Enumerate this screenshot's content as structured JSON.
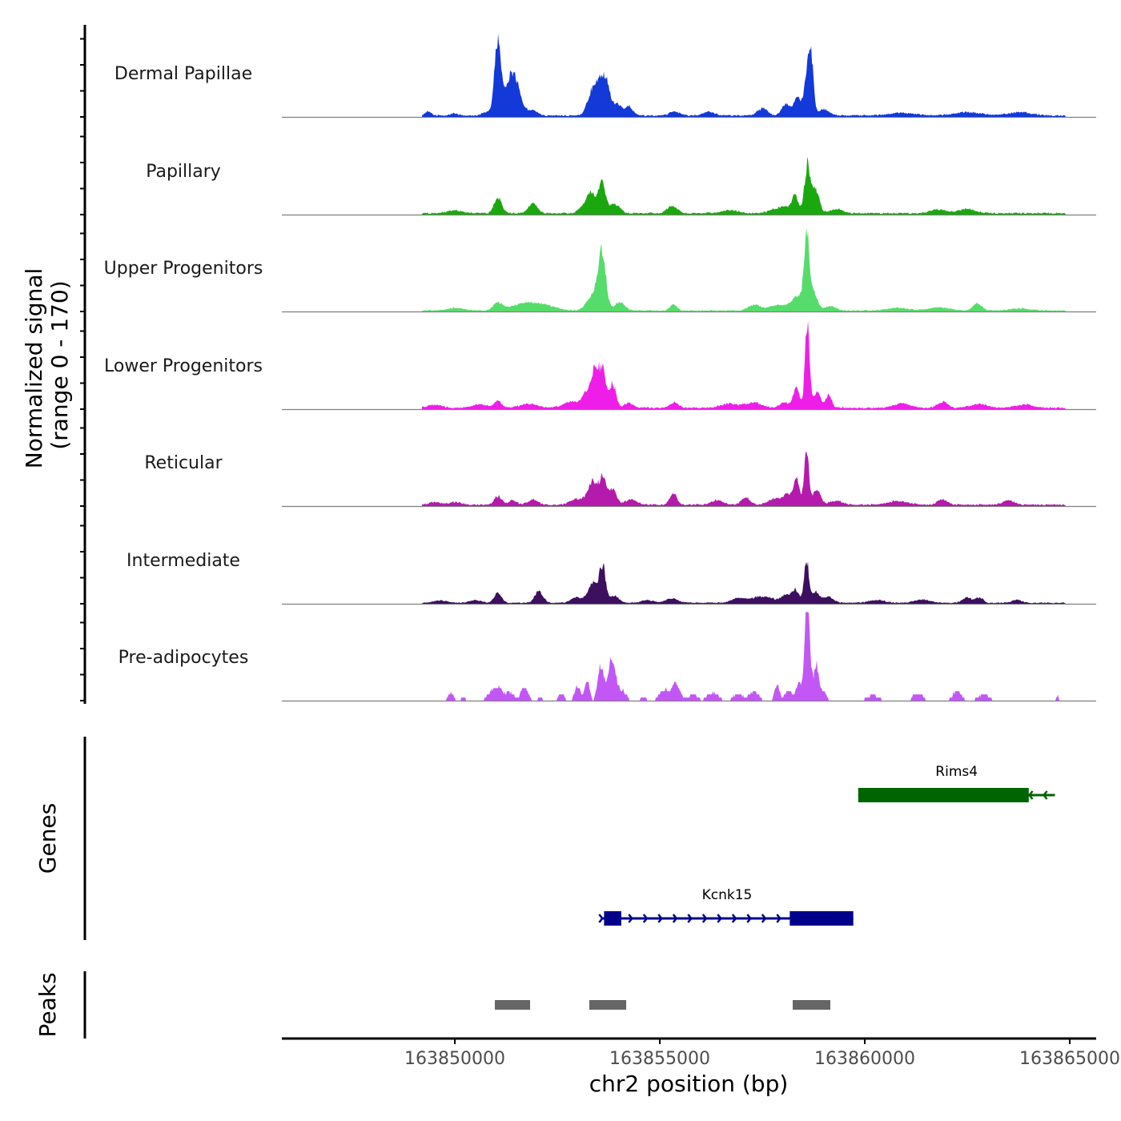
{
  "chart_data": {
    "type": "area",
    "title": "",
    "chromosome": "chr2",
    "xlabel": "chr2 position (bp)",
    "xlim": [
      163845780,
      163865645
    ],
    "x_ticks": [
      163850000,
      163855000,
      163860000,
      163865000
    ],
    "x_tick_labels": [
      "163850000",
      "163855000",
      "163860000",
      "163865000"
    ],
    "coverage": {
      "ylabel_line1": "Normalized signal",
      "ylabel_line2": "(range 0 - 170)",
      "ylim": [
        0,
        170
      ],
      "y_ticks": [
        0,
        50,
        100,
        150
      ],
      "data_start": 163849200,
      "data_end": 163864900,
      "tracks": [
        {
          "name": "Dermal Papillae",
          "color": "#1339D9",
          "peaks": [
            [
              163849355,
              8,
              80
            ],
            [
              163849980,
              5,
              80
            ],
            [
              163850800,
              7,
              120
            ],
            [
              163851050,
              137,
              80
            ],
            [
              163851370,
              71,
              130
            ],
            [
              163851550,
              30,
              120
            ],
            [
              163851900,
              10,
              120
            ],
            [
              163853340,
              45,
              110
            ],
            [
              163853530,
              57,
              90
            ],
            [
              163853700,
              60,
              90
            ],
            [
              163853960,
              22,
              100
            ],
            [
              163854240,
              18,
              100
            ],
            [
              163855360,
              8,
              120
            ],
            [
              163856200,
              7,
              140
            ],
            [
              163857500,
              14,
              120
            ],
            [
              163858080,
              22,
              100
            ],
            [
              163858360,
              34,
              90
            ],
            [
              163858600,
              89,
              70
            ],
            [
              163858700,
              83,
              60
            ],
            [
              163859000,
              12,
              120
            ],
            [
              163860900,
              5,
              300
            ],
            [
              163862500,
              6,
              300
            ],
            [
              163863800,
              6,
              300
            ]
          ],
          "baseline": 3
        },
        {
          "name": "Papillary",
          "color": "#1BA80F",
          "peaks": [
            [
              163850000,
              5,
              200
            ],
            [
              163851050,
              31,
              90
            ],
            [
              163851900,
              18,
              110
            ],
            [
              163853150,
              14,
              120
            ],
            [
              163853320,
              34,
              90
            ],
            [
              163853580,
              60,
              90
            ],
            [
              163853900,
              18,
              120
            ],
            [
              163855300,
              14,
              120
            ],
            [
              163856700,
              6,
              200
            ],
            [
              163857800,
              8,
              150
            ],
            [
              163858050,
              11,
              110
            ],
            [
              163858300,
              34,
              80
            ],
            [
              163858600,
              92,
              70
            ],
            [
              163858800,
              46,
              90
            ],
            [
              163859300,
              8,
              150
            ],
            [
              163861800,
              7,
              200
            ],
            [
              163862500,
              8,
              200
            ]
          ],
          "baseline": 3
        },
        {
          "name": "Upper Progenitors",
          "color": "#56DC6A",
          "peaks": [
            [
              163850010,
              5,
              200
            ],
            [
              163851050,
              14,
              110
            ],
            [
              163851650,
              12,
              300
            ],
            [
              163852150,
              10,
              300
            ],
            [
              163853250,
              14,
              110
            ],
            [
              163853460,
              34,
              110
            ],
            [
              163853600,
              98,
              90
            ],
            [
              163854020,
              16,
              120
            ],
            [
              163855330,
              13,
              80
            ],
            [
              163857300,
              11,
              140
            ],
            [
              163857900,
              10,
              250
            ],
            [
              163858380,
              26,
              150
            ],
            [
              163858580,
              138,
              60
            ],
            [
              163858750,
              38,
              90
            ],
            [
              163859150,
              8,
              150
            ],
            [
              163860800,
              5,
              250
            ],
            [
              163861800,
              6,
              250
            ],
            [
              163862750,
              14,
              110
            ],
            [
              163863800,
              4,
              250
            ]
          ],
          "baseline": 2
        },
        {
          "name": "Lower Progenitors",
          "color": "#EE1EE8",
          "peaks": [
            [
              163849500,
              5,
              200
            ],
            [
              163850600,
              6,
              200
            ],
            [
              163851050,
              12,
              90
            ],
            [
              163851800,
              8,
              200
            ],
            [
              163852850,
              12,
              200
            ],
            [
              163853230,
              30,
              110
            ],
            [
              163853420,
              66,
              80
            ],
            [
              163853600,
              77,
              80
            ],
            [
              163853850,
              46,
              80
            ],
            [
              163854240,
              10,
              100
            ],
            [
              163855350,
              10,
              100
            ],
            [
              163856700,
              8,
              200
            ],
            [
              163857300,
              10,
              200
            ],
            [
              163858040,
              10,
              120
            ],
            [
              163858330,
              37,
              80
            ],
            [
              163858600,
              169,
              55
            ],
            [
              163858840,
              33,
              80
            ],
            [
              163859120,
              26,
              70
            ],
            [
              163860900,
              8,
              200
            ],
            [
              163861900,
              11,
              120
            ],
            [
              163862800,
              7,
              200
            ],
            [
              163863900,
              6,
              200
            ]
          ],
          "baseline": 3
        },
        {
          "name": "Reticular",
          "color": "#B41AAC",
          "peaks": [
            [
              163849500,
              5,
              150
            ],
            [
              163850000,
              5,
              150
            ],
            [
              163851050,
              17,
              90
            ],
            [
              163851400,
              9,
              100
            ],
            [
              163851900,
              10,
              120
            ],
            [
              163852900,
              9,
              120
            ],
            [
              163853200,
              12,
              150
            ],
            [
              163853360,
              38,
              90
            ],
            [
              163853600,
              54,
              90
            ],
            [
              163853850,
              30,
              90
            ],
            [
              163854300,
              10,
              150
            ],
            [
              163855330,
              20,
              90
            ],
            [
              163856400,
              8,
              150
            ],
            [
              163857100,
              14,
              100
            ],
            [
              163857800,
              12,
              150
            ],
            [
              163858100,
              18,
              100
            ],
            [
              163858330,
              46,
              80
            ],
            [
              163858580,
              111,
              55
            ],
            [
              163858830,
              31,
              90
            ],
            [
              163859300,
              8,
              150
            ],
            [
              163860800,
              7,
              250
            ],
            [
              163861900,
              10,
              120
            ],
            [
              163863500,
              8,
              150
            ]
          ],
          "baseline": 3
        },
        {
          "name": "Intermediate",
          "color": "#3C0F5F",
          "peaks": [
            [
              163849650,
              5,
              150
            ],
            [
              163850500,
              5,
              150
            ],
            [
              163851050,
              18,
              90
            ],
            [
              163852050,
              22,
              100
            ],
            [
              163852950,
              10,
              120
            ],
            [
              163853250,
              12,
              100
            ],
            [
              163853380,
              31,
              90
            ],
            [
              163853600,
              72,
              80
            ],
            [
              163853900,
              14,
              100
            ],
            [
              163854700,
              5,
              150
            ],
            [
              163855300,
              8,
              150
            ],
            [
              163856900,
              8,
              150
            ],
            [
              163857500,
              12,
              300
            ],
            [
              163858060,
              14,
              90
            ],
            [
              163858300,
              25,
              90
            ],
            [
              163858580,
              80,
              60
            ],
            [
              163858800,
              20,
              90
            ],
            [
              163859100,
              12,
              120
            ],
            [
              163860300,
              5,
              200
            ],
            [
              163861400,
              6,
              200
            ],
            [
              163862500,
              10,
              120
            ],
            [
              163862800,
              10,
              90
            ],
            [
              163863700,
              6,
              120
            ]
          ],
          "baseline": 2
        },
        {
          "name": "Pre-adipocytes",
          "color": "#C257F5",
          "peaks": [
            [
              163849900,
              15,
              80
            ],
            [
              163850200,
              8,
              60
            ],
            [
              163850880,
              12,
              120
            ],
            [
              163851060,
              22,
              120
            ],
            [
              163851350,
              15,
              90
            ],
            [
              163851700,
              26,
              90
            ],
            [
              163852080,
              8,
              60
            ],
            [
              163852600,
              14,
              70
            ],
            [
              163853000,
              28,
              70
            ],
            [
              163853230,
              40,
              60
            ],
            [
              163853560,
              68,
              70
            ],
            [
              163853820,
              75,
              90
            ],
            [
              163854050,
              20,
              120
            ],
            [
              163854600,
              8,
              80
            ],
            [
              163855100,
              20,
              120
            ],
            [
              163855400,
              35,
              90
            ],
            [
              163855800,
              12,
              120
            ],
            [
              163856300,
              14,
              150
            ],
            [
              163856900,
              12,
              120
            ],
            [
              163857300,
              18,
              120
            ],
            [
              163857860,
              31,
              60
            ],
            [
              163858130,
              22,
              80
            ],
            [
              163858400,
              35,
              70
            ],
            [
              163858580,
              157,
              50
            ],
            [
              163858630,
              92,
              60
            ],
            [
              163858820,
              69,
              60
            ],
            [
              163859000,
              18,
              70
            ],
            [
              163860200,
              10,
              160
            ],
            [
              163861300,
              14,
              130
            ],
            [
              163862250,
              18,
              110
            ],
            [
              163862900,
              12,
              150
            ],
            [
              163864700,
              10,
              30
            ]
          ],
          "baseline": 0,
          "stepped": true
        }
      ]
    },
    "genes": {
      "ylabel": "Genes",
      "items": [
        {
          "name": "Rims4",
          "strand": "-",
          "color": "#006400",
          "start": 163859840,
          "end": 163864640,
          "exons": [
            [
              163859840,
              163864000
            ]
          ]
        },
        {
          "name": "Kcnk15",
          "strand": "+",
          "color": "#00008B",
          "start": 163853560,
          "end": 163859720,
          "exons": [
            [
              163853640,
              163854060
            ],
            [
              163858170,
              163859720
            ]
          ]
        }
      ]
    },
    "peaks": {
      "ylabel": "Peaks",
      "color": "#666666",
      "regions": [
        [
          163850976,
          163851836
        ],
        [
          163853281,
          163854180
        ],
        [
          163858242,
          163859160
        ]
      ]
    }
  }
}
